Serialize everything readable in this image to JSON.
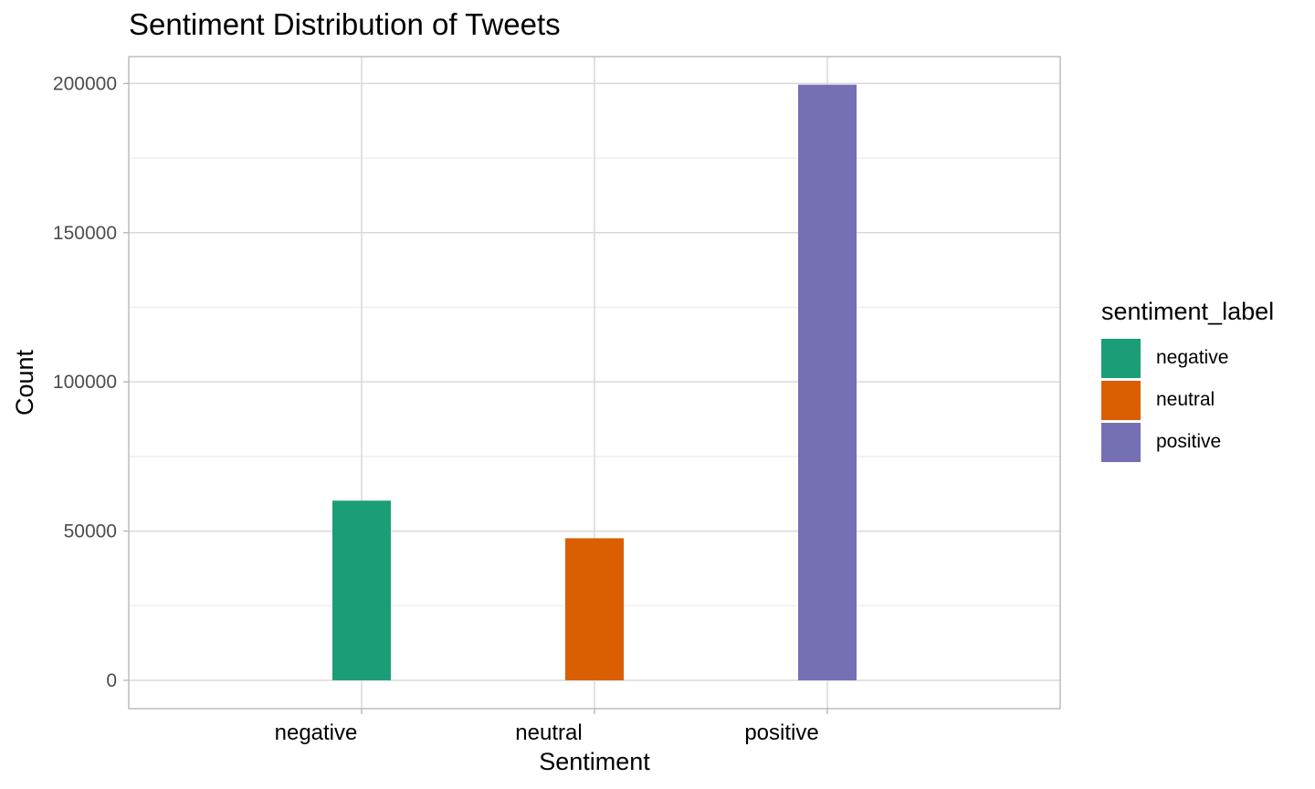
{
  "chart_data": {
    "type": "bar",
    "title": "Sentiment Distribution of Tweets",
    "xlabel": "Sentiment",
    "ylabel": "Count",
    "categories": [
      "negative",
      "neutral",
      "positive"
    ],
    "values": [
      60200,
      47600,
      199600
    ],
    "colors": [
      "#1B9E77",
      "#D95F02",
      "#7570B3"
    ],
    "ylim": [
      -9500,
      209000
    ],
    "yticks": [
      0,
      50000,
      100000,
      150000,
      200000
    ],
    "ytick_labels": [
      "0",
      "50000",
      "100000",
      "150000",
      "200000"
    ],
    "grid": true,
    "legend": {
      "title": "sentiment_label",
      "placement": "right",
      "entries": [
        "negative",
        "neutral",
        "positive"
      ]
    }
  }
}
